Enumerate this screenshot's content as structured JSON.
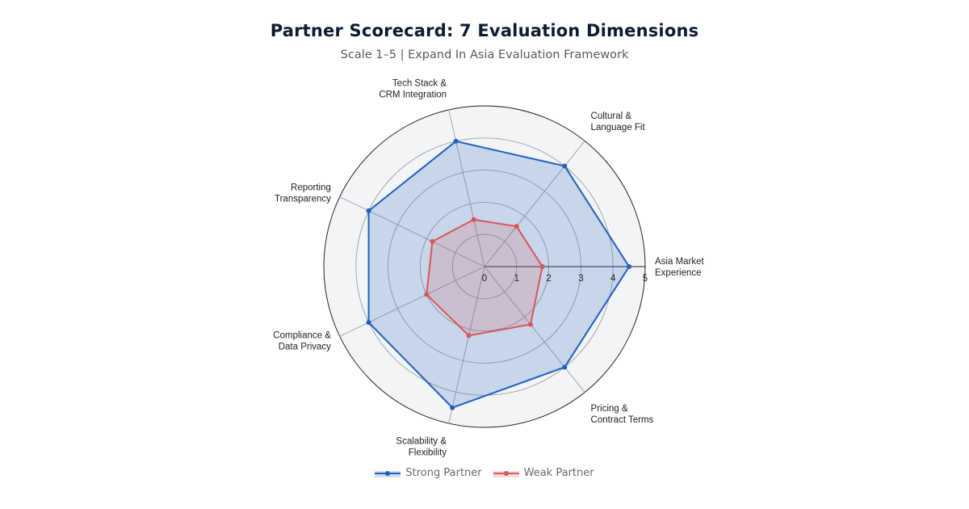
{
  "chart_data": {
    "type": "radar",
    "title": "Partner Scorecard: 7 Evaluation Dimensions",
    "subtitle": "Scale 1–5 | Expand In Asia Evaluation Framework",
    "categories": [
      [
        "Asia Market",
        "Experience"
      ],
      [
        "Cultural &",
        "Language Fit"
      ],
      [
        "Tech Stack &",
        "CRM Integration"
      ],
      [
        "Reporting",
        "Transparency"
      ],
      [
        "Compliance &",
        "Data Privacy"
      ],
      [
        "Scalability &",
        "Flexibility"
      ],
      [
        "Pricing &",
        "Contract Terms"
      ]
    ],
    "rlim": [
      0,
      5
    ],
    "rticks": [
      0,
      1,
      2,
      3,
      4,
      5
    ],
    "grid": true,
    "legend_position": "bottom-center",
    "series": [
      {
        "name": "Strong Partner",
        "values": [
          4.5,
          4.0,
          4.0,
          4.0,
          4.0,
          4.5,
          4.0
        ],
        "color": "#1f5fbf",
        "fill": "#1f5fbf"
      },
      {
        "name": "Weak Partner",
        "values": [
          1.8,
          1.6,
          1.5,
          1.8,
          2.0,
          2.2,
          2.3
        ],
        "color": "#d9555b",
        "fill": "#d9555b"
      }
    ]
  }
}
